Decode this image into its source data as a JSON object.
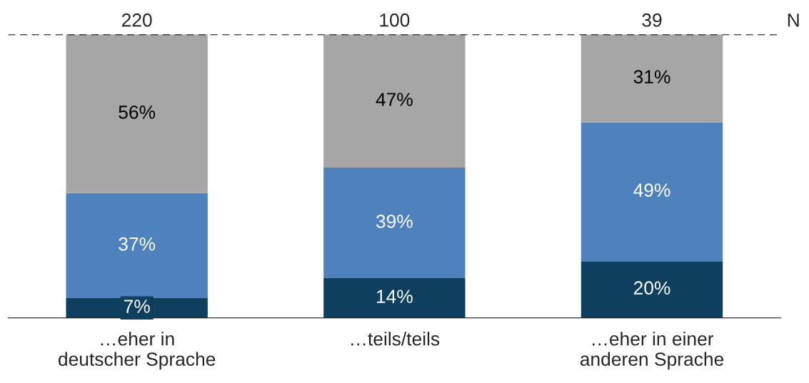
{
  "chart_data": {
    "type": "bar",
    "stacked": true,
    "categories": [
      "…eher in\ndeutscher Sprache",
      "…teils/teils",
      "…eher in einer\nanderen Sprache"
    ],
    "series": [
      {
        "color": "#0e3f5e",
        "values": [
          7,
          14,
          20
        ],
        "value_labels": [
          "7%",
          "14%",
          "20%"
        ]
      },
      {
        "color": "#4f81bd",
        "values": [
          37,
          39,
          49
        ],
        "value_labels": [
          "37%",
          "39%",
          "49%"
        ]
      },
      {
        "color": "#a6a6a6",
        "values": [
          56,
          47,
          31
        ],
        "value_labels": [
          "56%",
          "47%",
          "31%"
        ]
      }
    ],
    "ref_lines": [
      {
        "axis": "y",
        "value": 100,
        "line_style": "dashed",
        "color": "#000000"
      }
    ],
    "annotations": [
      {
        "text": "220",
        "x": "…eher in\ndeutscher Sprache",
        "y": 100
      },
      {
        "text": "100",
        "x": "…teils/teils",
        "y": 100
      },
      {
        "text": "39",
        "x": "…eher in einer\nanderen Sprache",
        "y": 100
      },
      "N"
    ],
    "grid": false
  }
}
